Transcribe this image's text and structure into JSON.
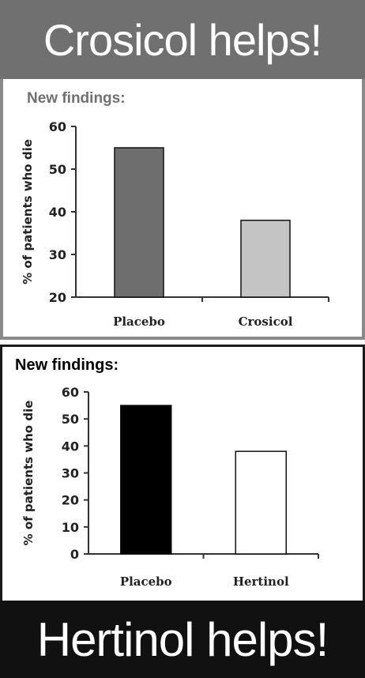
{
  "top_banner": {
    "text": "Crosicol helps!"
  },
  "bottom_banner": {
    "text": "Hertinol helps!"
  },
  "chart_data": [
    {
      "type": "bar",
      "title": "New findings:",
      "ylabel": "% of patients who die",
      "xlabel": "",
      "categories": [
        "Placebo",
        "Crosicol"
      ],
      "values": [
        55,
        38
      ],
      "ylim": [
        20,
        60
      ],
      "yticks": [
        20,
        30,
        40,
        50,
        60
      ],
      "bar_colors": [
        "#6e6e6e",
        "#c4c4c4"
      ],
      "title_color": "#707070",
      "grid": false
    },
    {
      "type": "bar",
      "title": "New findings:",
      "ylabel": "% of patients who die",
      "xlabel": "",
      "categories": [
        "Placebo",
        "Hertinol"
      ],
      "values": [
        55,
        38
      ],
      "ylim": [
        0,
        60
      ],
      "yticks": [
        0,
        10,
        20,
        30,
        40,
        50,
        60
      ],
      "bar_colors": [
        "#000000",
        "#ffffff"
      ],
      "title_color": "#000000",
      "grid": false
    }
  ]
}
